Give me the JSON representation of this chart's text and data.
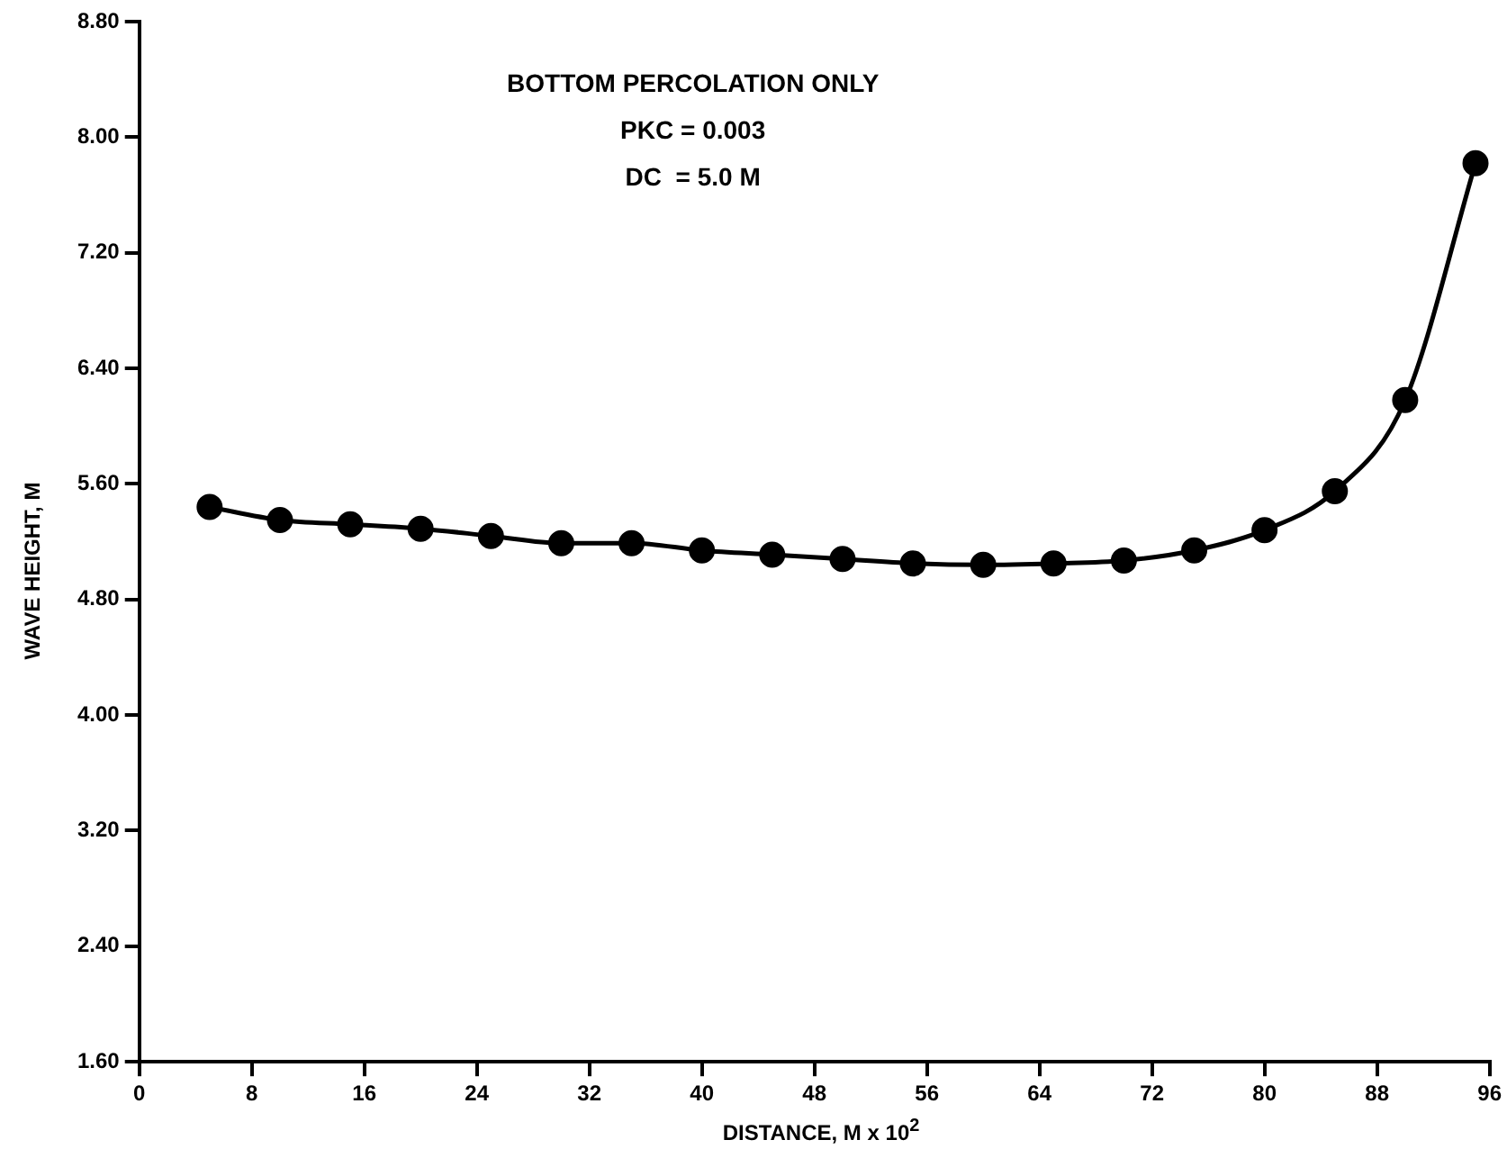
{
  "chart_data": {
    "type": "line",
    "title": "BOTTOM PERCOLATION ONLY",
    "annotations": [
      "PKC = 0.003",
      "DC  = 5.0 M"
    ],
    "xlabel": "DISTANCE, M x 10$^{2}$",
    "ylabel": "WAVE HEIGHT, M",
    "x": [
      5,
      10,
      15,
      20,
      25,
      30,
      35,
      40,
      45,
      50,
      55,
      60,
      65,
      70,
      75,
      80,
      85,
      90,
      95
    ],
    "series": [
      {
        "color": "#000000",
        "values": [
          5.44,
          5.35,
          5.32,
          5.29,
          5.24,
          5.19,
          5.19,
          5.14,
          5.11,
          5.08,
          5.05,
          5.04,
          5.05,
          5.07,
          5.14,
          5.28,
          5.55,
          6.18,
          7.82
        ]
      }
    ],
    "xlim": [
      0,
      96
    ],
    "xticks": [
      0,
      8,
      16,
      24,
      32,
      40,
      48,
      56,
      64,
      72,
      80,
      88,
      96
    ],
    "ylim": [
      1.6,
      8.8
    ],
    "yticks": [
      {
        "value": 1.6,
        "label": "1.60"
      },
      {
        "value": 2.4,
        "label": "2.40"
      },
      {
        "value": 3.2,
        "label": "3.20"
      },
      {
        "value": 4,
        "label": "4.00"
      },
      {
        "value": 4.8,
        "label": "4.80"
      },
      {
        "value": 5.6,
        "label": "5.60"
      },
      {
        "value": 6.4,
        "label": "6.40"
      },
      {
        "value": 7.2,
        "label": "7.20"
      },
      {
        "value": 8,
        "label": "8.00"
      },
      {
        "value": 8.8,
        "label": "8.80"
      }
    ],
    "grid": false,
    "legend": false,
    "marker": "circle",
    "line_style": "solid"
  }
}
